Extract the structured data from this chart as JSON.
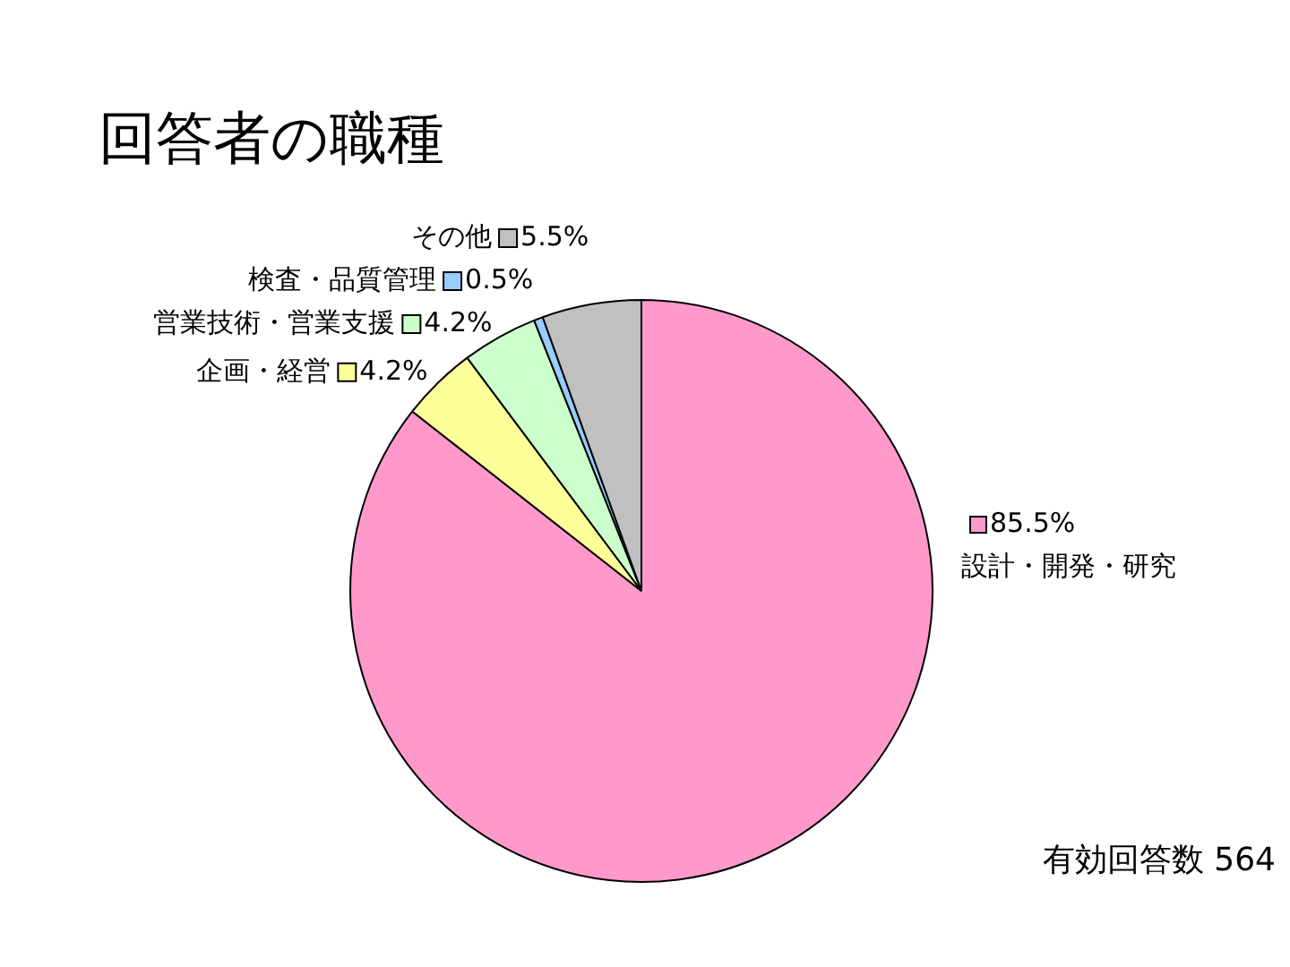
{
  "chart_data": {
    "type": "pie",
    "title": "回答者の職種",
    "categories": [
      "設計・開発・研究",
      "企画・経営",
      "営業技術・営業支援",
      "検査・品質管理",
      "その他"
    ],
    "values": [
      85.5,
      4.2,
      4.2,
      0.5,
      5.5
    ],
    "colors": [
      "#ff99cc",
      "#ffff99",
      "#ccffcc",
      "#99ccff",
      "#c0c0c0"
    ],
    "value_labels": [
      "85.5%",
      "4.2%",
      "4.2%",
      "0.5%",
      "5.5%"
    ],
    "annotations": [
      "有効回答数 564"
    ],
    "legend": "top left"
  }
}
